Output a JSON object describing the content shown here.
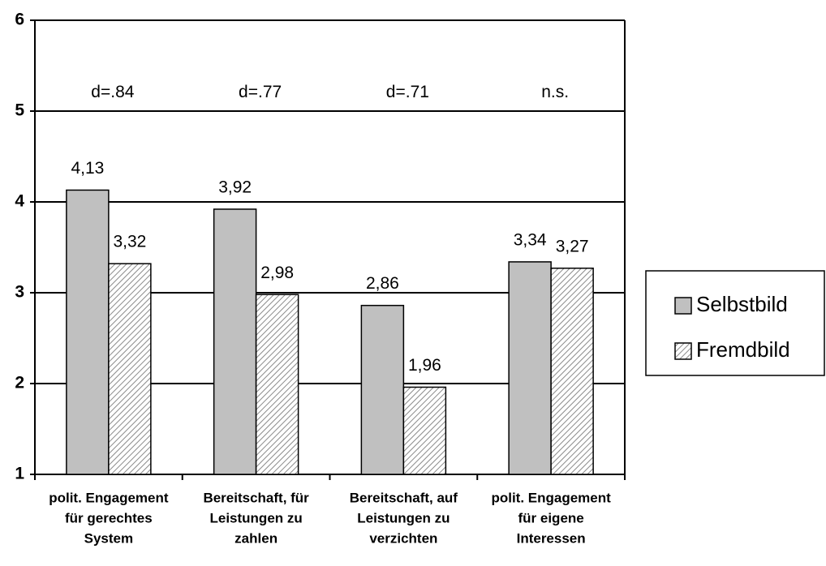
{
  "chart_data": {
    "type": "bar",
    "categories": [
      [
        "polit. Engagement",
        "für gerechtes",
        "System"
      ],
      [
        "Bereitschaft, für",
        "Leistungen zu",
        "zahlen"
      ],
      [
        "Bereitschaft, auf",
        "Leistungen zu",
        "verzichten"
      ],
      [
        "polit. Engagement",
        "für eigene",
        "Interessen"
      ]
    ],
    "annotations": [
      "d=.84",
      "d=.77",
      "d=.71",
      "n.s."
    ],
    "series": [
      {
        "name": "Selbstbild",
        "color": "#c0c0c0",
        "values": [
          4.13,
          3.92,
          2.86,
          3.34
        ],
        "value_labels": [
          "4,13",
          "3,92",
          "2,86",
          "3,34"
        ]
      },
      {
        "name": "Fremdbild",
        "color": "#c0c0c0",
        "hatch": true,
        "values": [
          3.32,
          2.98,
          1.96,
          3.27
        ],
        "value_labels": [
          "3,32",
          "2,98",
          "1,96",
          "3,27"
        ]
      }
    ],
    "ylim": [
      1,
      6
    ],
    "yticks": [
      1,
      2,
      3,
      4,
      5,
      6
    ],
    "grid": true,
    "legend": "right"
  }
}
